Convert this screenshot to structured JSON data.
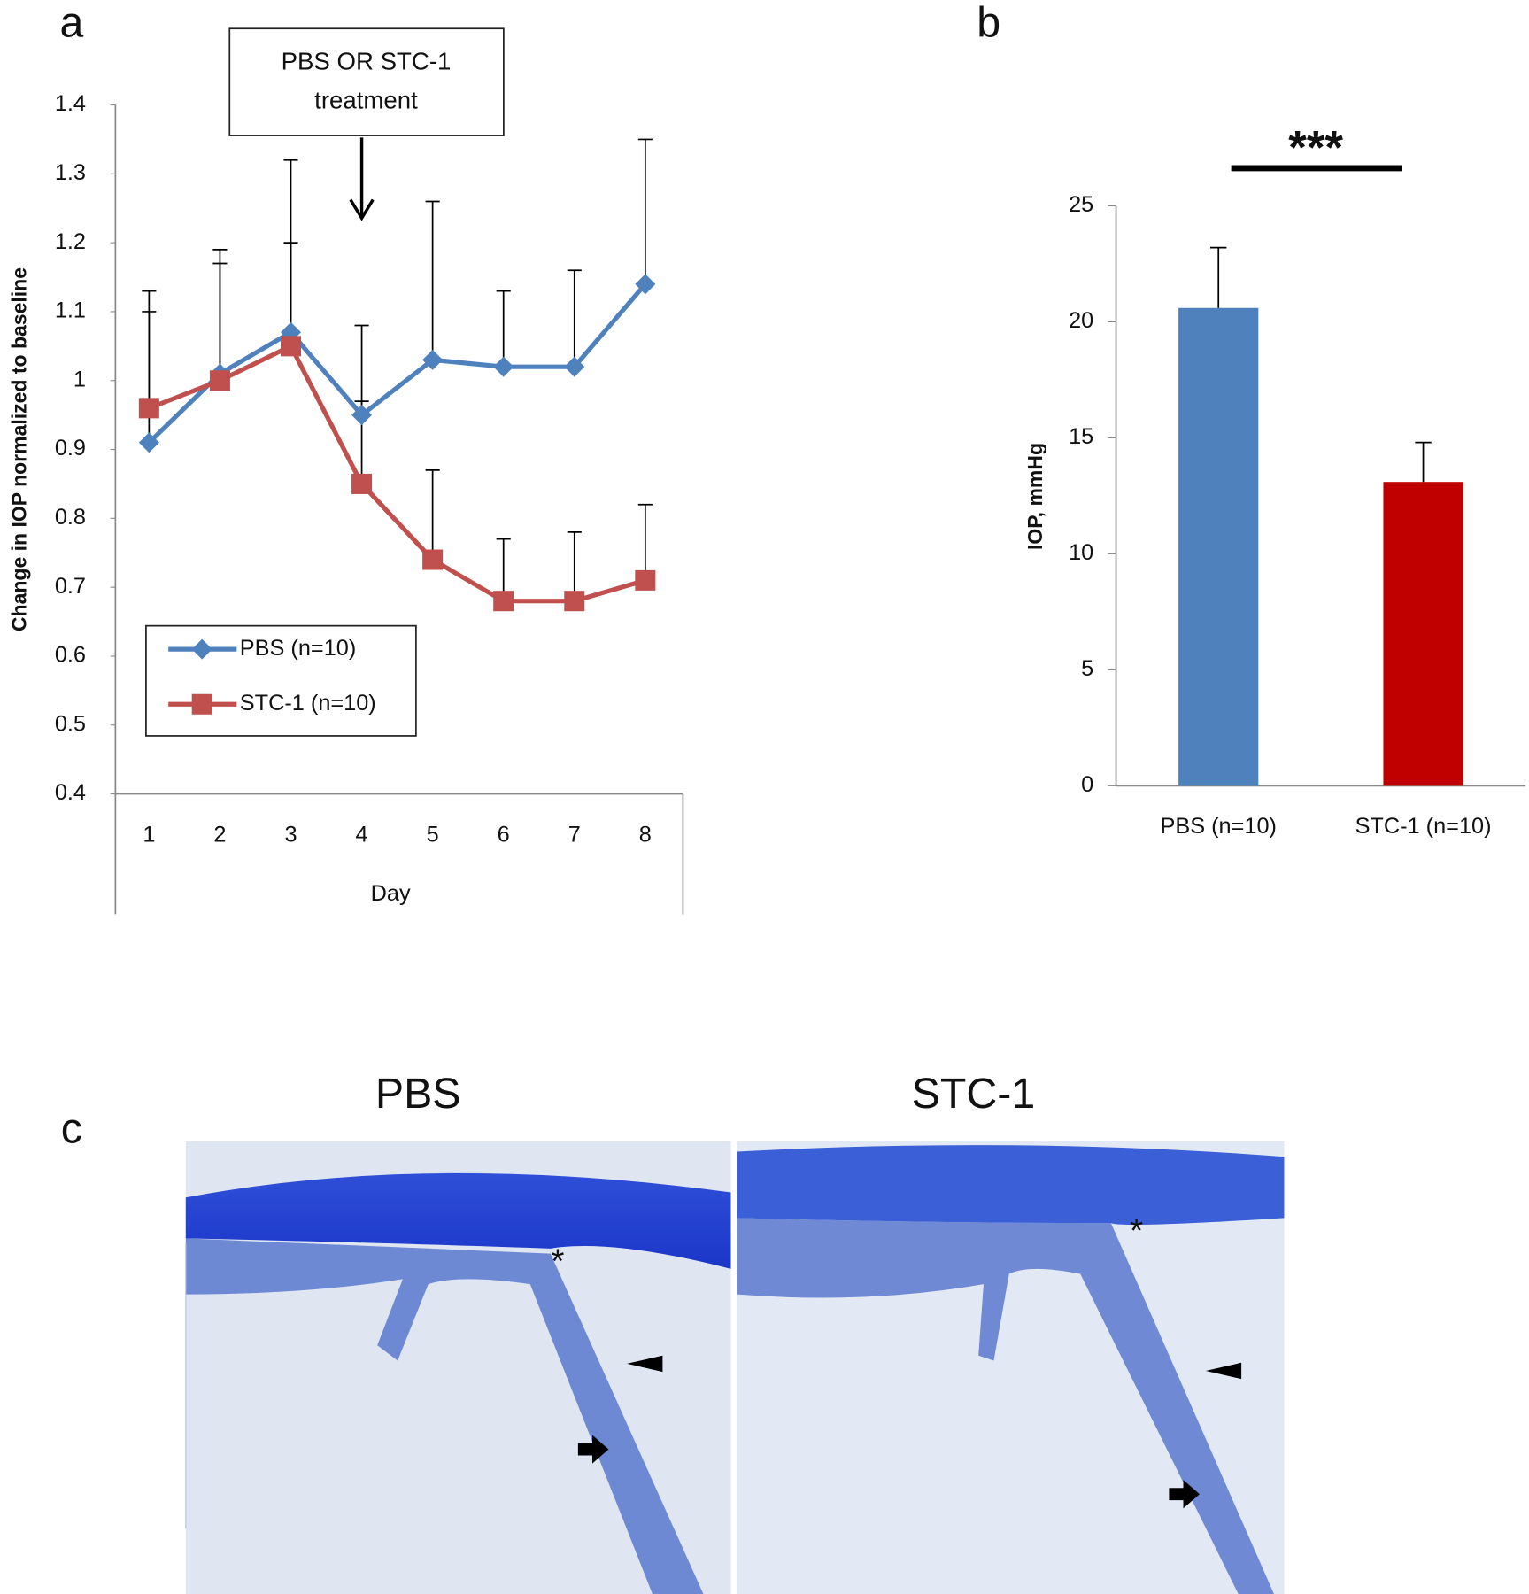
{
  "chart_data": [
    {
      "type": "line",
      "panel_label": "a",
      "y_label": "Change in IOP normalized to baseline",
      "x_label": "Day",
      "categories": [
        "1",
        "2",
        "3",
        "4",
        "5",
        "6",
        "7",
        "8"
      ],
      "ylim": [
        0.4,
        1.4
      ],
      "yticks": [
        0.4,
        0.5,
        0.6,
        0.7,
        0.8,
        0.9,
        1,
        1.1,
        1.2,
        1.3,
        1.4
      ],
      "annotation": {
        "lines": [
          "PBS OR STC-1",
          "treatment"
        ],
        "category": "4"
      },
      "legend": "lower left",
      "series": [
        {
          "name": "PBS (n=10)",
          "color": "#4f81bd",
          "marker": "diamond",
          "values": [
            0.91,
            1.01,
            1.07,
            0.95,
            1.03,
            1.02,
            1.02,
            1.14
          ],
          "error": [
            0.22,
            0.18,
            0.25,
            0.13,
            0.23,
            0.11,
            0.14,
            0.21
          ]
        },
        {
          "name": "STC-1 (n=10)",
          "color": "#c0504d",
          "marker": "square",
          "values": [
            0.96,
            1.0,
            1.05,
            0.85,
            0.74,
            0.68,
            0.68,
            0.71
          ],
          "error": [
            0.14,
            0.17,
            0.15,
            0.12,
            0.13,
            0.09,
            0.1,
            0.11
          ]
        }
      ]
    },
    {
      "type": "bar",
      "panel_label": "b",
      "y_label": "IOP, mmHg",
      "categories": [
        "PBS (n=10)",
        "STC-1 (n=10)"
      ],
      "values": [
        20.6,
        13.1
      ],
      "error": [
        2.6,
        1.7
      ],
      "colors": [
        "#4f81bd",
        "#c00000"
      ],
      "ylim": [
        0,
        25
      ],
      "yticks": [
        0,
        5,
        10,
        15,
        20,
        25
      ],
      "significance": "***"
    }
  ],
  "figure": {
    "panel_label": "c",
    "images": [
      {
        "title": "PBS",
        "markers": [
          "*"
        ]
      },
      {
        "title": "STC-1",
        "markers": [
          "*"
        ]
      }
    ]
  }
}
